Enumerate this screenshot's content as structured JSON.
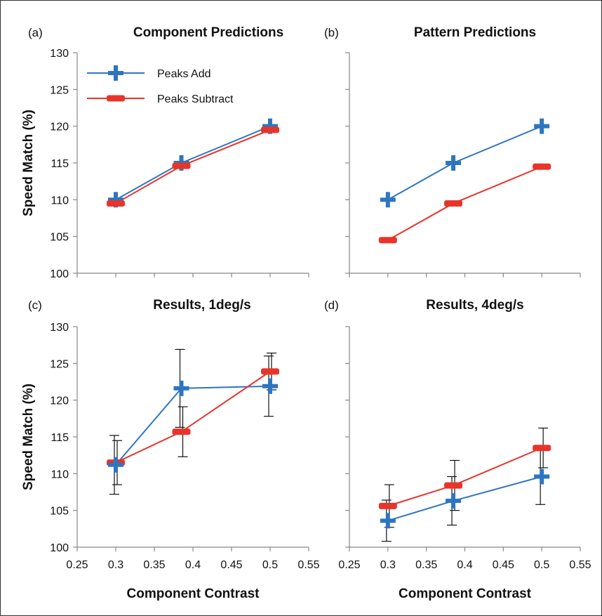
{
  "colors": {
    "add": "#2E75C0",
    "subtract": "#E8342A",
    "axis": "#888888",
    "errorbar": "#111111"
  },
  "legend": {
    "add": "Peaks Add",
    "subtract": "Peaks Subtract",
    "placement": "top-left of panel (a)"
  },
  "chart_data": [
    {
      "panel_label": "(a)",
      "title": "Component Predictions",
      "type": "line",
      "xlabel": "",
      "ylabel": "Speed Match (%)",
      "xlim": [
        0.25,
        0.55
      ],
      "ylim": [
        100,
        130
      ],
      "xticks": [],
      "yticks": [
        "100",
        "105",
        "110",
        "115",
        "120",
        "125",
        "130"
      ],
      "series": [
        {
          "name": "Peaks Add",
          "key": "add",
          "x": [
            0.3,
            0.385,
            0.5
          ],
          "y": [
            110,
            115,
            120
          ]
        },
        {
          "name": "Peaks Subtract",
          "key": "subtract",
          "x": [
            0.3,
            0.385,
            0.5
          ],
          "y": [
            109.5,
            114.6,
            119.5
          ]
        }
      ]
    },
    {
      "panel_label": "(b)",
      "title": "Pattern Predictions",
      "type": "line",
      "xlabel": "",
      "ylabel": "",
      "xlim": [
        0.25,
        0.55
      ],
      "ylim": [
        100,
        130
      ],
      "xticks": [],
      "yticks": [],
      "series": [
        {
          "name": "Peaks Add",
          "key": "add",
          "x": [
            0.3,
            0.385,
            0.5
          ],
          "y": [
            110,
            115,
            120
          ]
        },
        {
          "name": "Peaks Subtract",
          "key": "subtract",
          "x": [
            0.3,
            0.385,
            0.5
          ],
          "y": [
            104.5,
            109.5,
            114.5
          ]
        }
      ]
    },
    {
      "panel_label": "(c)",
      "title": "Results, 1deg/s",
      "type": "line",
      "xlabel": "Component Contrast",
      "ylabel": "Speed Match (%)",
      "xlim": [
        0.25,
        0.55
      ],
      "ylim": [
        100,
        130
      ],
      "xticks": [
        "0.25",
        "0.3",
        "0.35",
        "0.4",
        "0.45",
        "0.5",
        "0.55"
      ],
      "yticks": [
        "100",
        "105",
        "110",
        "115",
        "120",
        "125",
        "130"
      ],
      "series": [
        {
          "name": "Peaks Add",
          "key": "add",
          "x": [
            0.3,
            0.385,
            0.5
          ],
          "y": [
            111.2,
            121.6,
            121.9
          ],
          "err": [
            4.0,
            5.3,
            4.1
          ]
        },
        {
          "name": "Peaks Subtract",
          "key": "subtract",
          "x": [
            0.3,
            0.385,
            0.5
          ],
          "y": [
            111.5,
            115.7,
            123.9
          ],
          "err": [
            3.0,
            3.4,
            2.5
          ]
        }
      ]
    },
    {
      "panel_label": "(d)",
      "title": "Results, 4deg/s",
      "type": "line",
      "xlabel": "Component Contrast",
      "ylabel": "",
      "xlim": [
        0.25,
        0.55
      ],
      "ylim": [
        100,
        130
      ],
      "xticks": [
        "0.25",
        "0.3",
        "0.35",
        "0.4",
        "0.45",
        "0.5",
        "0.55"
      ],
      "yticks": [],
      "series": [
        {
          "name": "Peaks Add",
          "key": "add",
          "x": [
            0.3,
            0.385,
            0.5
          ],
          "y": [
            103.6,
            106.3,
            109.6
          ],
          "err": [
            2.8,
            3.3,
            3.8
          ]
        },
        {
          "name": "Peaks Subtract",
          "key": "subtract",
          "x": [
            0.3,
            0.385,
            0.5
          ],
          "y": [
            105.6,
            108.4,
            113.5
          ],
          "err": [
            2.9,
            3.4,
            2.7
          ]
        }
      ]
    }
  ]
}
